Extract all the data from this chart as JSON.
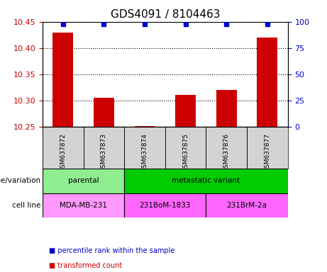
{
  "title": "GDS4091 / 8104463",
  "samples": [
    "GSM637872",
    "GSM637873",
    "GSM637874",
    "GSM637875",
    "GSM637876",
    "GSM637877"
  ],
  "bar_values": [
    10.43,
    10.305,
    10.251,
    10.31,
    10.32,
    10.42
  ],
  "percentile_values": [
    98,
    98,
    98,
    98,
    98,
    98
  ],
  "ylim_left": [
    10.25,
    10.45
  ],
  "ylim_right": [
    0,
    100
  ],
  "yticks_left": [
    10.25,
    10.3,
    10.35,
    10.4,
    10.45
  ],
  "yticks_right": [
    0,
    25,
    50,
    75,
    100
  ],
  "bar_color": "#cc0000",
  "dot_color": "#0000cc",
  "bar_bottom": 10.25,
  "genotype_groups": [
    {
      "label": "parental",
      "span": [
        0,
        2
      ],
      "color": "#90ee90"
    },
    {
      "label": "metastatic variant",
      "span": [
        2,
        6
      ],
      "color": "#00cc00"
    }
  ],
  "cell_line_groups": [
    {
      "label": "MDA-MB-231",
      "span": [
        0,
        2
      ],
      "color": "#ff99ff"
    },
    {
      "label": "231BoM-1833",
      "span": [
        2,
        4
      ],
      "color": "#ff66ff"
    },
    {
      "label": "231BrM-2a",
      "span": [
        4,
        6
      ],
      "color": "#ff66ff"
    }
  ],
  "legend_items": [
    {
      "color": "#cc0000",
      "label": "transformed count"
    },
    {
      "color": "#0000cc",
      "label": "percentile rank within the sample"
    }
  ],
  "xlabel_genotype": "genotype/variation",
  "xlabel_cellline": "cell line",
  "background_plot": "#ffffff",
  "background_xticklabel": "#d3d3d3",
  "title_fontsize": 11,
  "tick_fontsize": 8,
  "label_fontsize": 8
}
